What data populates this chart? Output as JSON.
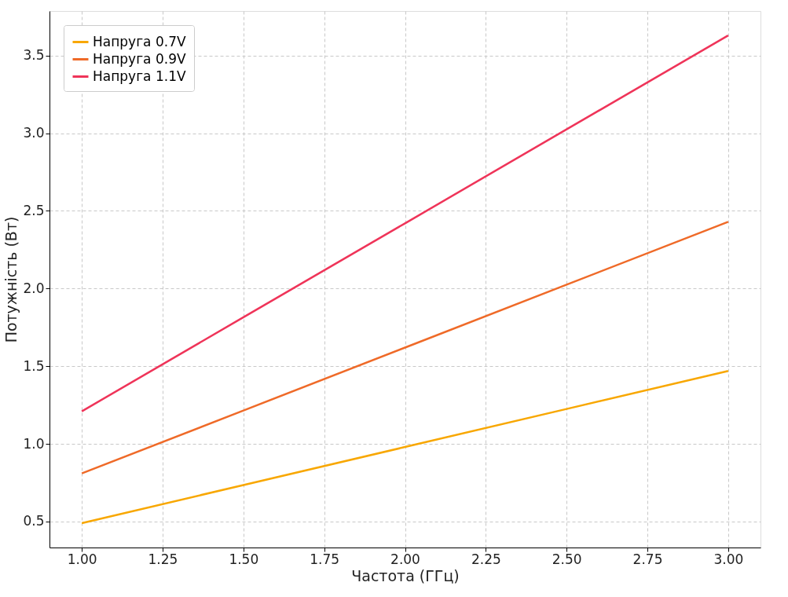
{
  "chart_data": {
    "type": "line",
    "xlabel": "Частота (ГГц)",
    "ylabel": "Потужність (Вт)",
    "x": [
      1.0,
      1.5,
      2.0,
      2.5,
      3.0
    ],
    "series": [
      {
        "name": "Напруга 0.7V",
        "color": "#f8a700",
        "values": [
          0.49,
          0.735,
          0.98,
          1.225,
          1.47
        ]
      },
      {
        "name": "Напруга 0.9V",
        "color": "#ef6a28",
        "values": [
          0.81,
          1.215,
          1.62,
          2.025,
          2.43
        ]
      },
      {
        "name": "Напруга 1.1V",
        "color": "#ef3459",
        "values": [
          1.21,
          1.815,
          2.42,
          3.025,
          3.63
        ]
      }
    ],
    "xlim": [
      0.9,
      3.1
    ],
    "ylim": [
      0.333,
      3.787
    ],
    "xticks": [
      {
        "value": 1.0,
        "label": "1.00"
      },
      {
        "value": 1.25,
        "label": "1.25"
      },
      {
        "value": 1.5,
        "label": "1.50"
      },
      {
        "value": 1.75,
        "label": "1.75"
      },
      {
        "value": 2.0,
        "label": "2.00"
      },
      {
        "value": 2.25,
        "label": "2.25"
      },
      {
        "value": 2.5,
        "label": "2.50"
      },
      {
        "value": 2.75,
        "label": "2.75"
      },
      {
        "value": 3.0,
        "label": "3.00"
      }
    ],
    "yticks": [
      0.5,
      {
        "value": 1.0,
        "label": "1.0"
      },
      1.5,
      {
        "value": 2.0,
        "label": "2.0"
      },
      2.5,
      {
        "value": 3.0,
        "label": "3.0"
      },
      3.5
    ],
    "grid": true,
    "legend": "top left",
    "marker": "none",
    "line_style": "solid"
  }
}
